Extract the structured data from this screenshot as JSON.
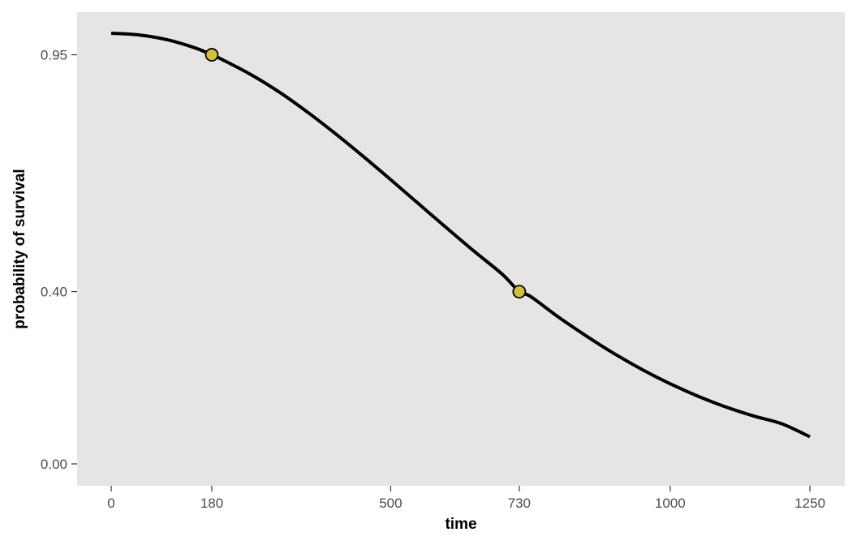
{
  "chart_data": {
    "type": "line",
    "xlabel": "time",
    "ylabel": "probability of survival",
    "xlim": [
      0,
      1250
    ],
    "ylim": [
      0,
      1
    ],
    "x_ticks": [
      0,
      180,
      500,
      730,
      1000,
      1250
    ],
    "x_tick_labels": [
      "0",
      "180",
      "500",
      "730",
      "1000",
      "1250"
    ],
    "y_ticks": [
      0,
      0.4,
      0.95
    ],
    "y_tick_labels": [
      "0.00",
      "0.40",
      "0.95"
    ],
    "grid": false,
    "colors": {
      "panel_background": "#e5e5e5",
      "line": "#000000",
      "point_fill": "#d2c13b",
      "point_outline": "#000000",
      "tick_label": "#4d4d4d",
      "tick_mark": "#333333"
    },
    "series": [
      {
        "x": [
          0,
          50,
          100,
          150,
          180,
          200,
          250,
          300,
          350,
          400,
          450,
          500,
          550,
          600,
          650,
          700,
          730,
          750,
          800,
          850,
          900,
          950,
          1000,
          1050,
          1100,
          1150,
          1200,
          1250
        ],
        "y": [
          1.0,
          0.996,
          0.985,
          0.966,
          0.95,
          0.938,
          0.904,
          0.864,
          0.818,
          0.768,
          0.715,
          0.66,
          0.604,
          0.548,
          0.493,
          0.44,
          0.4,
          0.389,
          0.341,
          0.297,
          0.256,
          0.219,
          0.186,
          0.157,
          0.132,
          0.111,
          0.093,
          0.063
        ]
      }
    ],
    "points": [
      {
        "x": 180,
        "y": 0.95
      },
      {
        "x": 730,
        "y": 0.4
      }
    ]
  }
}
